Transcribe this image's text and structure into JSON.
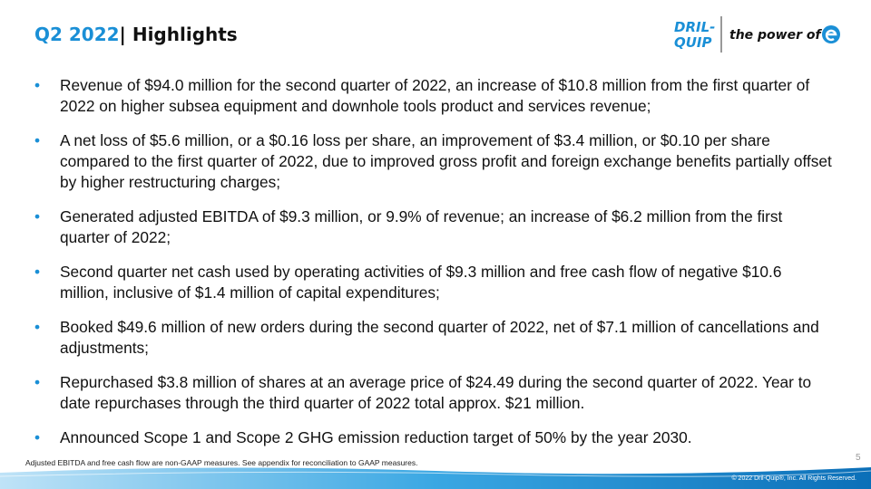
{
  "header": {
    "title_period": "Q2 2022",
    "title_separator": "|",
    "title_text": "Highlights"
  },
  "logo": {
    "brand_line1": "DRIL-",
    "brand_line2": "QUIP",
    "tagline": "the power of"
  },
  "bullets": [
    "Revenue of $94.0 million for the second quarter of 2022, an increase of $10.8 million from the first quarter of 2022 on higher subsea equipment and downhole tools product and services revenue;",
    "A net loss of $5.6 million, or a $0.16 loss per share, an improvement of $3.4 million, or $0.10 per share compared to the first quarter of 2022, due to improved gross profit and foreign exchange benefits partially offset by higher restructuring charges;",
    "Generated adjusted EBITDA of $9.3 million, or 9.9% of revenue; an increase of $6.2 million from the first quarter of 2022;",
    "Second quarter net cash used by operating activities of $9.3 million and free cash flow of negative $10.6 million, inclusive of $1.4 million of capital expenditures;",
    "Booked $49.6 million of new orders during the second quarter of 2022, net of $7.1 million of cancellations and adjustments;",
    "Repurchased $3.8 million of shares at an average price of $24.49 during the second quarter of 2022.  Year to date repurchases through the third quarter of 2022 total approx. $21 million.",
    "Announced Scope 1 and Scope 2 GHG emission reduction target of 50% by the year 2030."
  ],
  "footnote": "Adjusted EBITDA and free cash flow are non-GAAP measures. See appendix for reconciliation to GAAP measures.",
  "page_number": "5",
  "copyright": "© 2022 Dril-Quip®, Inc. All Rights Reserved."
}
